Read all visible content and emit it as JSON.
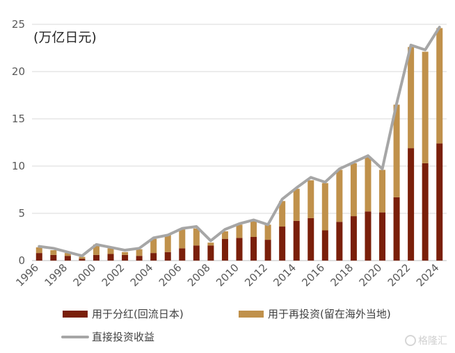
{
  "chart_data": {
    "type": "bar",
    "unit_label": "(万亿日元)",
    "categories": [
      "1996",
      "1997",
      "1998",
      "1999",
      "2000",
      "2001",
      "2002",
      "2003",
      "2004",
      "2005",
      "2006",
      "2007",
      "2008",
      "2009",
      "2010",
      "2011",
      "2012",
      "2013",
      "2014",
      "2015",
      "2016",
      "2017",
      "2018",
      "2019",
      "2020",
      "2021",
      "2022",
      "2023",
      "2024"
    ],
    "x_tick_labels": [
      "1996",
      "1998",
      "2000",
      "2002",
      "2004",
      "2006",
      "2008",
      "2010",
      "2012",
      "2014",
      "2016",
      "2018",
      "2020",
      "2022",
      "2024"
    ],
    "ylim": [
      0,
      25
    ],
    "y_ticks": [
      0,
      5,
      10,
      15,
      20,
      25
    ],
    "grid": true,
    "legend_position": "bottom",
    "series": [
      {
        "name": "用于分红(回流日本)",
        "kind": "stacked-bar",
        "color": "#7a1f0a",
        "values": [
          0.8,
          0.6,
          0.5,
          0.2,
          0.6,
          0.7,
          0.6,
          0.5,
          0.8,
          0.9,
          1.3,
          1.6,
          1.6,
          2.3,
          2.4,
          2.5,
          2.2,
          3.6,
          4.2,
          4.5,
          3.2,
          4.1,
          4.7,
          5.2,
          5.1,
          6.7,
          11.9,
          10.3,
          12.4
        ]
      },
      {
        "name": "用于再投资(留在海外当地)",
        "kind": "stacked-bar",
        "color": "#c0914b",
        "values": [
          0.6,
          0.5,
          0.3,
          0.2,
          1.1,
          0.6,
          0.3,
          0.7,
          1.5,
          1.8,
          2.0,
          1.8,
          0.3,
          0.8,
          1.4,
          1.7,
          1.6,
          2.7,
          3.4,
          4.0,
          5.0,
          5.5,
          5.6,
          5.8,
          4.5,
          9.8,
          10.7,
          11.8,
          12.2
        ]
      },
      {
        "name": "直接投资收益",
        "kind": "line",
        "color": "#a6a6a6",
        "values": [
          1.5,
          1.3,
          0.9,
          0.5,
          1.7,
          1.4,
          1.1,
          1.3,
          2.4,
          2.7,
          3.4,
          3.6,
          2.1,
          3.3,
          3.9,
          4.3,
          3.8,
          6.5,
          7.7,
          8.8,
          8.3,
          9.7,
          10.4,
          11.1,
          9.7,
          16.6,
          22.8,
          22.3,
          24.7
        ]
      }
    ]
  }
}
